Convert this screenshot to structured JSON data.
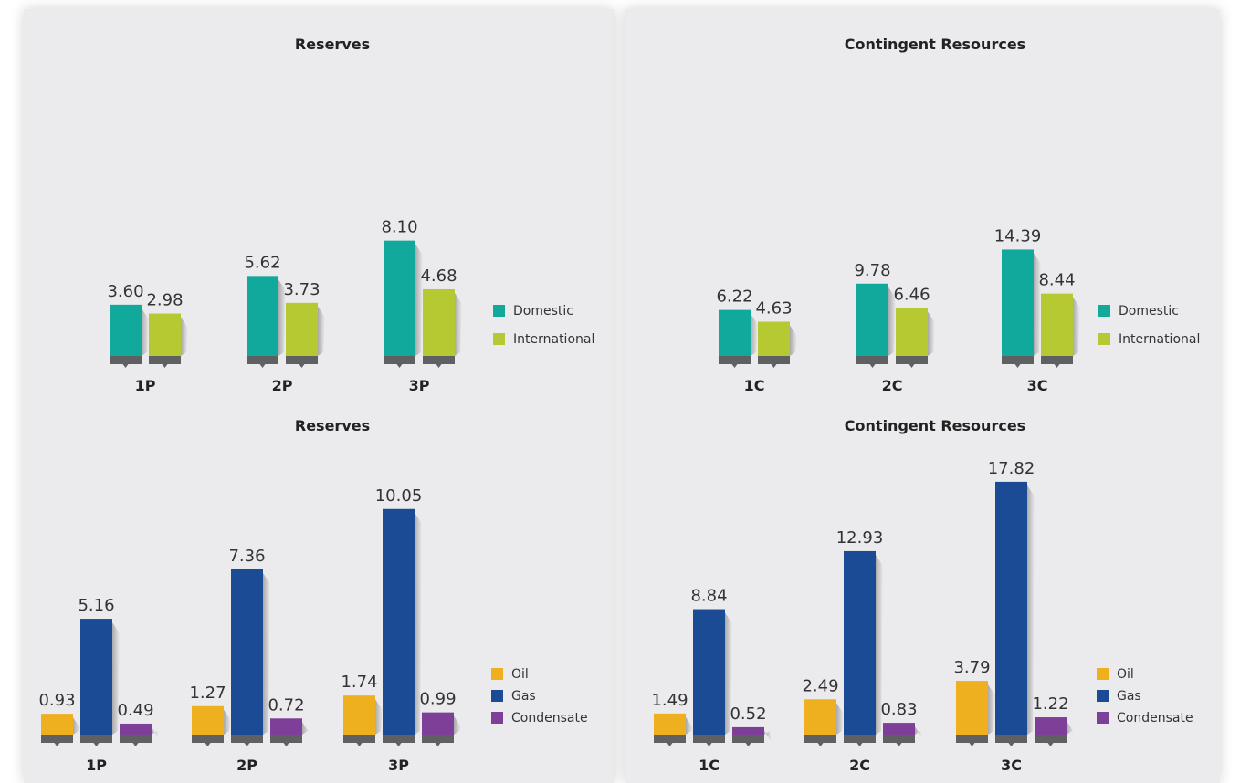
{
  "colors": {
    "domestic": "#10a99b",
    "international": "#b6c933",
    "oil": "#efb020",
    "gas": "#1b4b95",
    "condensate": "#7e3f98",
    "base": "#5f6062",
    "panel": "#ebebed"
  },
  "chart_data": [
    {
      "type": "bar",
      "title": "Reserves",
      "categories": [
        "1P",
        "2P",
        "3P"
      ],
      "series": [
        {
          "name": "Domestic",
          "color_key": "domestic",
          "values": [
            3.6,
            5.62,
            8.1
          ],
          "labels": [
            "3.60",
            "5.62",
            "8.10"
          ]
        },
        {
          "name": "International",
          "color_key": "international",
          "values": [
            2.98,
            3.73,
            4.68
          ],
          "labels": [
            "2.98",
            "3.73",
            "4.68"
          ]
        }
      ],
      "legend_position": "right",
      "grid": false
    },
    {
      "type": "bar",
      "title": "Contingent Resources",
      "categories": [
        "1C",
        "2C",
        "3C"
      ],
      "series": [
        {
          "name": "Domestic",
          "color_key": "domestic",
          "values": [
            6.22,
            9.78,
            14.39
          ],
          "labels": [
            "6.22",
            "9.78",
            "14.39"
          ]
        },
        {
          "name": "International",
          "color_key": "international",
          "values": [
            4.63,
            6.46,
            8.44
          ],
          "labels": [
            "4.63",
            "6.46",
            "8.44"
          ]
        }
      ],
      "legend_position": "right",
      "grid": false
    },
    {
      "type": "bar",
      "title": "Reserves",
      "categories": [
        "1P",
        "2P",
        "3P"
      ],
      "series": [
        {
          "name": "Oil",
          "color_key": "oil",
          "values": [
            0.93,
            1.27,
            1.74
          ],
          "labels": [
            "0.93",
            "1.27",
            "1.74"
          ]
        },
        {
          "name": "Gas",
          "color_key": "gas",
          "values": [
            5.16,
            7.36,
            10.05
          ],
          "labels": [
            "5.16",
            "7.36",
            "10.05"
          ]
        },
        {
          "name": "Condensate",
          "color_key": "condensate",
          "values": [
            0.49,
            0.72,
            0.99
          ],
          "labels": [
            "0.49",
            "0.72",
            "0.99"
          ]
        }
      ],
      "legend_position": "right",
      "grid": false
    },
    {
      "type": "bar",
      "title": "Contingent Resources",
      "categories": [
        "1C",
        "2C",
        "3C"
      ],
      "series": [
        {
          "name": "Oil",
          "color_key": "oil",
          "values": [
            1.49,
            2.49,
            3.79
          ],
          "labels": [
            "1.49",
            "2.49",
            "3.79"
          ]
        },
        {
          "name": "Gas",
          "color_key": "gas",
          "values": [
            8.84,
            12.93,
            17.82
          ],
          "labels": [
            "8.84",
            "12.93",
            "17.82"
          ]
        },
        {
          "name": "Condensate",
          "color_key": "condensate",
          "values": [
            0.52,
            0.83,
            1.22
          ],
          "labels": [
            "0.52",
            "0.83",
            "1.22"
          ]
        }
      ],
      "legend_position": "right",
      "grid": false
    }
  ]
}
